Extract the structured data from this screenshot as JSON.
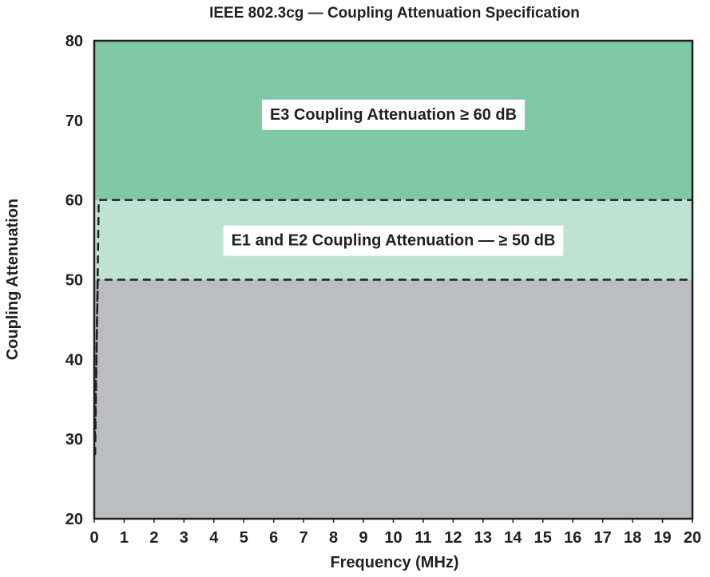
{
  "chart_data": {
    "type": "area",
    "title": "IEEE 802.3cg — Coupling Attenuation Specification",
    "xlabel": "Frequency (MHz)",
    "ylabel": "Coupling Attenuation",
    "xlim": [
      0,
      20
    ],
    "ylim": [
      20,
      80
    ],
    "xticks": [
      0,
      1,
      2,
      3,
      4,
      5,
      6,
      7,
      8,
      9,
      10,
      11,
      12,
      13,
      14,
      15,
      16,
      17,
      18,
      19,
      20
    ],
    "yticks": [
      20,
      30,
      40,
      50,
      60,
      70,
      80
    ],
    "grid": false,
    "regions": [
      {
        "name": "E3",
        "label": "E3 Coupling Attenuation ≥ 60 dB",
        "from": 60,
        "to": 80,
        "color": "#80c9a7"
      },
      {
        "name": "E1/E2",
        "label": "E1 and E2 Coupling Attenuation — ≥ 50 dB",
        "from": 50,
        "to": 60,
        "color": "#bfe3d2"
      },
      {
        "name": "below",
        "from": 20,
        "to": 50,
        "color": "#bcbdc1"
      }
    ],
    "series": [
      {
        "style": "dashed",
        "x": [
          0.03,
          0.15,
          20
        ],
        "y": [
          28,
          60,
          60
        ]
      },
      {
        "style": "dashed",
        "x": [
          0.02,
          0.12,
          20
        ],
        "y": [
          30,
          50,
          50
        ]
      }
    ]
  }
}
